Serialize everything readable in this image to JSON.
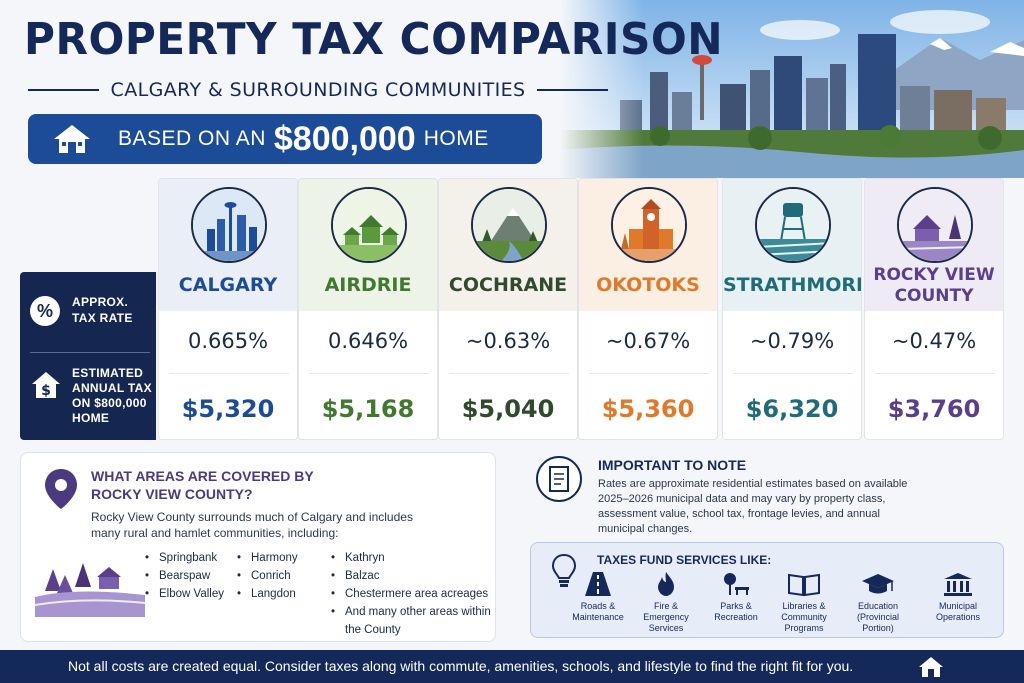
{
  "header": {
    "title": "PROPERTY TAX COMPARISON",
    "subtitle": "CALGARY & SURROUNDING COMMUNITIES",
    "banner_pre": "BASED ON AN",
    "banner_amount": "$800,000",
    "banner_post": "HOME"
  },
  "labels": {
    "rate_label": "APPROX. TAX RATE",
    "tax_label": "ESTIMATED ANNUAL TAX ON $800,000 HOME",
    "percent_symbol": "%"
  },
  "communities": [
    {
      "name": "CALGARY",
      "rate": "0.665%",
      "tax": "$5,320",
      "color": "#1c4b97",
      "tint": "#e9eef7"
    },
    {
      "name": "AIRDRIE",
      "rate": "0.646%",
      "tax": "$5,168",
      "color": "#3f7a2e",
      "tint": "#edf3e6"
    },
    {
      "name": "COCHRANE",
      "rate": "~0.63%",
      "tax": "$5,040",
      "color": "#2f4a2c",
      "tint": "#f3f1ea"
    },
    {
      "name": "OKOTOKS",
      "rate": "~0.67%",
      "tax": "$5,360",
      "color": "#e07a2a",
      "tint": "#fbeee2"
    },
    {
      "name": "STRATHMORE",
      "rate": "~0.79%",
      "tax": "$6,320",
      "color": "#1f6b7a",
      "tint": "#e7f0f2"
    },
    {
      "name": "ROCKY VIEW COUNTY",
      "rate": "~0.47%",
      "tax": "$3,760",
      "color": "#5a3f8c",
      "tint": "#efebf5"
    }
  ],
  "rocky_view": {
    "title": "WHAT AREAS ARE COVERED BY ROCKY VIEW COUNTY?",
    "description": "Rocky View County surrounds much of Calgary and includes many rural and hamlet communities, including:",
    "col1": [
      "Springbank",
      "Bearspaw",
      "Elbow Valley"
    ],
    "col2": [
      "Harmony",
      "Conrich",
      "Langdon"
    ],
    "col3": [
      "Kathryn",
      "Balzac",
      "Chestermere area acreages",
      "And many other areas within the County"
    ]
  },
  "note": {
    "title": "IMPORTANT TO NOTE",
    "text": "Rates are approximate residential estimates based on available 2025–2026 municipal data and may vary by property class, assessment value, school tax, frontage levies, and annual municipal changes."
  },
  "services": {
    "title": "TAXES FUND SERVICES LIKE:",
    "items": [
      {
        "label": "Roads & Maintenance",
        "icon": "road-icon"
      },
      {
        "label": "Fire & Emergency Services",
        "icon": "fire-icon"
      },
      {
        "label": "Parks & Recreation",
        "icon": "park-icon"
      },
      {
        "label": "Libraries & Community Programs",
        "icon": "book-icon"
      },
      {
        "label": "Education (Provincial Portion)",
        "icon": "graduation-cap-icon"
      },
      {
        "label": "Municipal Operations",
        "icon": "building-icon"
      }
    ]
  },
  "footer": {
    "text": "Not all costs are created equal.   Consider taxes along with commute, amenities, schools, and lifestyle to find the right fit for you."
  }
}
